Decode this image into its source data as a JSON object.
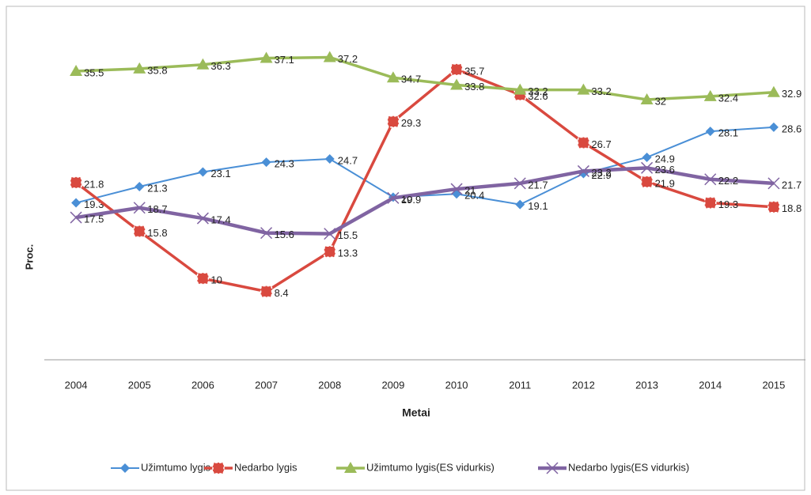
{
  "chart_data": {
    "type": "line",
    "x_label": "Metai",
    "y_label": "Proc.",
    "categories": [
      "2004",
      "2005",
      "2006",
      "2007",
      "2008",
      "2009",
      "2010",
      "2011",
      "2012",
      "2013",
      "2014",
      "2015"
    ],
    "ylim": [
      0,
      42.5
    ],
    "legend": "bottom",
    "series": [
      {
        "name": "Užimtumo lygis",
        "color": "#4a8fd6",
        "marker": "diamond",
        "values": [
          19.3,
          21.3,
          23.1,
          24.3,
          24.7,
          20,
          20.4,
          19.1,
          22.9,
          24.9,
          28.1,
          28.6
        ]
      },
      {
        "name": "Nedarbo lygis",
        "color": "#d9493f",
        "marker": "square",
        "values": [
          21.8,
          15.8,
          10,
          8.4,
          13.3,
          29.3,
          35.7,
          32.6,
          26.7,
          21.9,
          19.3,
          18.8
        ]
      },
      {
        "name": "Užimtumo lygis(ES vidurkis)",
        "color": "#9bbb59",
        "marker": "triangle",
        "values": [
          35.5,
          35.8,
          36.3,
          37.1,
          37.2,
          34.7,
          33.8,
          33.2,
          33.2,
          32,
          32.4,
          32.9
        ]
      },
      {
        "name": "Nedarbo lygis(ES vidurkis)",
        "color": "#8064a2",
        "marker": "x",
        "values": [
          17.5,
          18.7,
          17.4,
          15.6,
          15.5,
          19.9,
          21,
          21.7,
          23.2,
          23.6,
          22.2,
          21.7
        ]
      }
    ]
  }
}
